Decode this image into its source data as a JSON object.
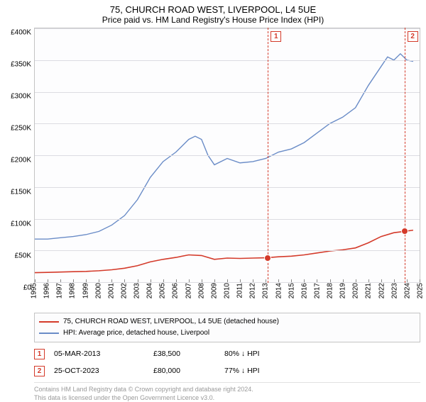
{
  "title": "75, CHURCH ROAD WEST, LIVERPOOL, L4 5UE",
  "subtitle": "Price paid vs. HM Land Registry's House Price Index (HPI)",
  "chart": {
    "type": "line",
    "background_color": "#fdfdfe",
    "border_color": "#c4c4c4",
    "grid_color": "#dcdce2",
    "x_years": [
      1995,
      1996,
      1997,
      1998,
      1999,
      2000,
      2001,
      2002,
      2003,
      2004,
      2005,
      2006,
      2007,
      2008,
      2009,
      2010,
      2011,
      2012,
      2013,
      2014,
      2015,
      2016,
      2017,
      2018,
      2019,
      2020,
      2021,
      2022,
      2023,
      2024,
      2025
    ],
    "xlim": [
      1995,
      2025
    ],
    "ylim": [
      0,
      400000
    ],
    "ytick_step": 50000,
    "ytick_labels": [
      "£0",
      "£50K",
      "£100K",
      "£150K",
      "£200K",
      "£250K",
      "£300K",
      "£350K",
      "£400K"
    ],
    "label_fontsize": 10,
    "series": [
      {
        "name": "hpi",
        "color": "#6a8cc7",
        "width": 1.4,
        "points": [
          [
            1995,
            68000
          ],
          [
            1996,
            68000
          ],
          [
            1997,
            70000
          ],
          [
            1998,
            72000
          ],
          [
            1999,
            75000
          ],
          [
            2000,
            80000
          ],
          [
            2001,
            90000
          ],
          [
            2002,
            105000
          ],
          [
            2003,
            130000
          ],
          [
            2004,
            165000
          ],
          [
            2005,
            190000
          ],
          [
            2006,
            205000
          ],
          [
            2007,
            225000
          ],
          [
            2007.5,
            230000
          ],
          [
            2008,
            225000
          ],
          [
            2008.5,
            200000
          ],
          [
            2009,
            185000
          ],
          [
            2010,
            195000
          ],
          [
            2011,
            188000
          ],
          [
            2012,
            190000
          ],
          [
            2013,
            195000
          ],
          [
            2014,
            205000
          ],
          [
            2015,
            210000
          ],
          [
            2016,
            220000
          ],
          [
            2017,
            235000
          ],
          [
            2018,
            250000
          ],
          [
            2019,
            260000
          ],
          [
            2020,
            275000
          ],
          [
            2021,
            310000
          ],
          [
            2022,
            340000
          ],
          [
            2022.5,
            355000
          ],
          [
            2023,
            350000
          ],
          [
            2023.5,
            360000
          ],
          [
            2024,
            350000
          ],
          [
            2024.5,
            348000
          ]
        ]
      },
      {
        "name": "price_paid",
        "color": "#d43a2a",
        "width": 1.6,
        "points": [
          [
            1995,
            15000
          ],
          [
            1996,
            15500
          ],
          [
            1997,
            16000
          ],
          [
            1998,
            16500
          ],
          [
            1999,
            17000
          ],
          [
            2000,
            18000
          ],
          [
            2001,
            19500
          ],
          [
            2002,
            22000
          ],
          [
            2003,
            26000
          ],
          [
            2004,
            32000
          ],
          [
            2005,
            36000
          ],
          [
            2006,
            39000
          ],
          [
            2007,
            43000
          ],
          [
            2008,
            42000
          ],
          [
            2009,
            36000
          ],
          [
            2010,
            38000
          ],
          [
            2011,
            37500
          ],
          [
            2012,
            38000
          ],
          [
            2013,
            38500
          ],
          [
            2014,
            40000
          ],
          [
            2015,
            41000
          ],
          [
            2016,
            43000
          ],
          [
            2017,
            46000
          ],
          [
            2018,
            49000
          ],
          [
            2019,
            51000
          ],
          [
            2020,
            54000
          ],
          [
            2021,
            62000
          ],
          [
            2022,
            72000
          ],
          [
            2023,
            78000
          ],
          [
            2023.8,
            80000
          ],
          [
            2024.5,
            82000
          ]
        ]
      }
    ],
    "markers": [
      {
        "id": "1",
        "x": 2013.17,
        "y": 38500
      },
      {
        "id": "2",
        "x": 2023.82,
        "y": 80000
      }
    ],
    "marker_line_color": "#d43a2a"
  },
  "legend": {
    "items": [
      {
        "color": "#d43a2a",
        "label": "75, CHURCH ROAD WEST, LIVERPOOL, L4 5UE (detached house)"
      },
      {
        "color": "#6a8cc7",
        "label": "HPI: Average price, detached house, Liverpool"
      }
    ]
  },
  "transactions": [
    {
      "badge": "1",
      "date": "05-MAR-2013",
      "price": "£38,500",
      "delta": "80% ↓ HPI"
    },
    {
      "badge": "2",
      "date": "25-OCT-2023",
      "price": "£80,000",
      "delta": "77% ↓ HPI"
    }
  ],
  "footer": {
    "line1": "Contains HM Land Registry data © Crown copyright and database right 2024.",
    "line2": "This data is licensed under the Open Government Licence v3.0."
  }
}
